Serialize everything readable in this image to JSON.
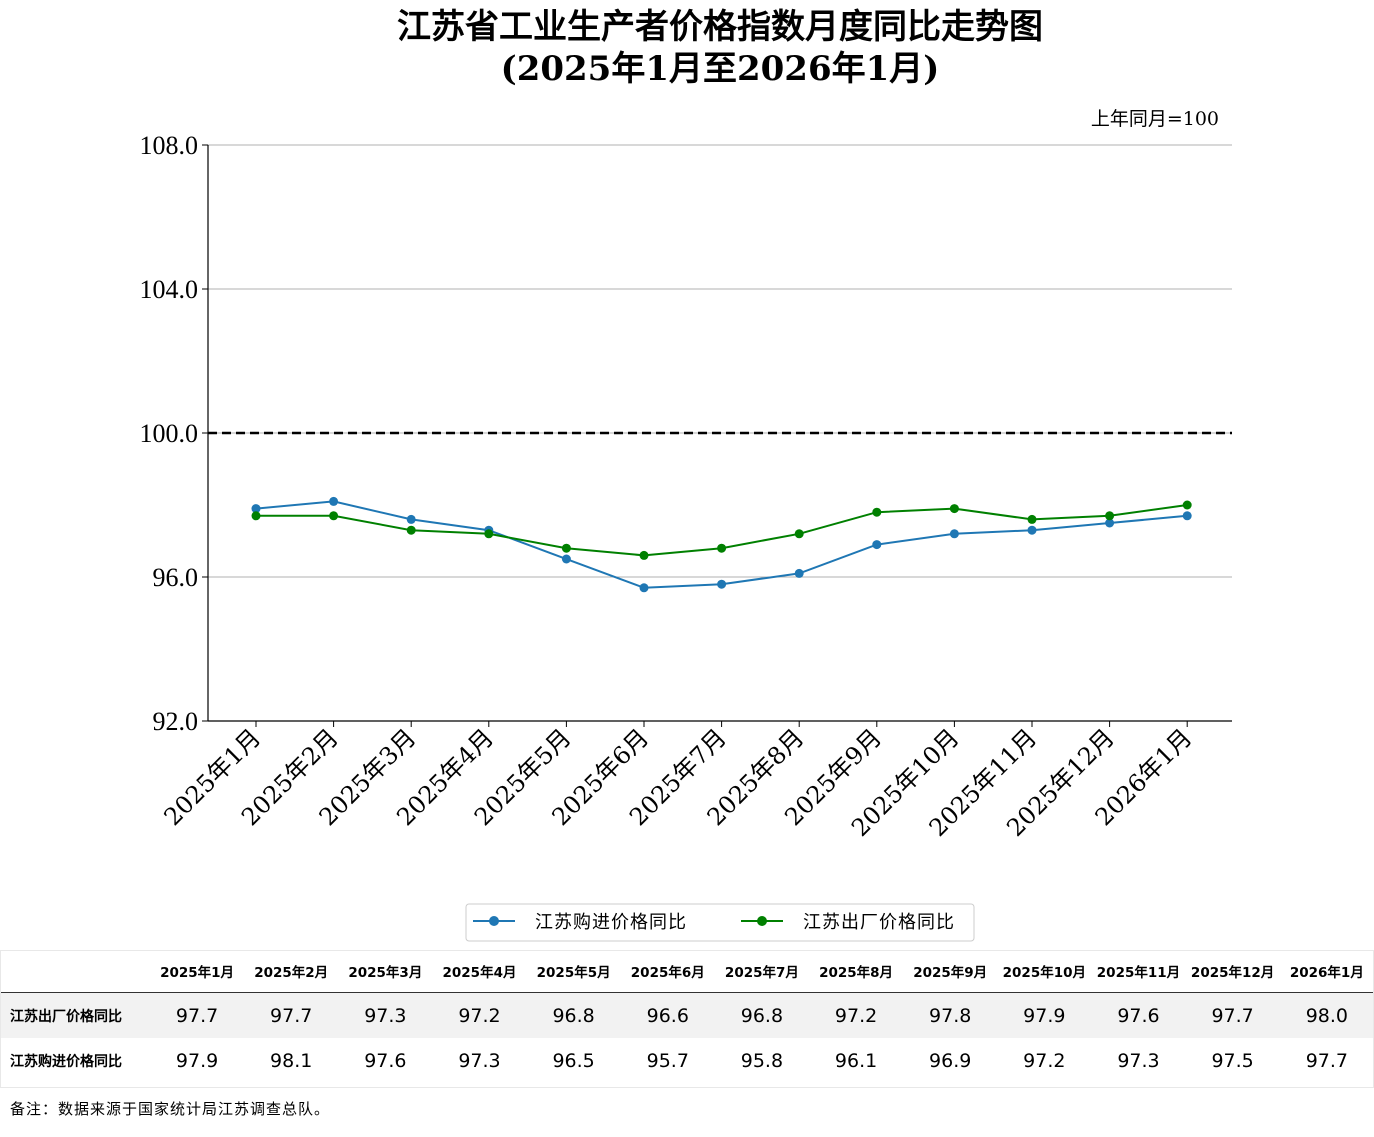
{
  "chart_data": {
    "type": "line",
    "title": "江苏省工业生产者价格指数月度同比走势图",
    "subtitle": "(2025年1月至2026年1月)",
    "unit_note": "上年同月=100",
    "categories": [
      "2025年1月",
      "2025年2月",
      "2025年3月",
      "2025年4月",
      "2025年5月",
      "2025年6月",
      "2025年7月",
      "2025年8月",
      "2025年9月",
      "2025年10月",
      "2025年11月",
      "2025年12月",
      "2026年1月"
    ],
    "ylim": [
      92.0,
      108.0
    ],
    "yticks": [
      "92.0",
      "96.0",
      "100.0",
      "104.0",
      "108.0"
    ],
    "reference_line": 100.0,
    "grid": "horizontal",
    "legend_position": "bottom-center",
    "series": [
      {
        "name": "江苏购进价格同比",
        "color": "#1f77b4",
        "values": [
          97.9,
          98.1,
          97.6,
          97.3,
          96.5,
          95.7,
          95.8,
          96.1,
          96.9,
          97.2,
          97.3,
          97.5,
          97.7
        ]
      },
      {
        "name": "江苏出厂价格同比",
        "color": "#008000",
        "values": [
          97.7,
          97.7,
          97.3,
          97.2,
          96.8,
          96.6,
          96.8,
          97.2,
          97.8,
          97.9,
          97.6,
          97.7,
          98.0
        ]
      }
    ]
  },
  "table": {
    "headers": [
      "2025年1月",
      "2025年2月",
      "2025年3月",
      "2025年4月",
      "2025年5月",
      "2025年6月",
      "2025年7月",
      "2025年8月",
      "2025年9月",
      "2025年10月",
      "2025年11月",
      "2025年12月",
      "2026年1月"
    ],
    "rows": [
      {
        "label": "江苏出厂价格同比",
        "cells": [
          "97.7",
          "97.7",
          "97.3",
          "97.2",
          "96.8",
          "96.6",
          "96.8",
          "97.2",
          "97.8",
          "97.9",
          "97.6",
          "97.7",
          "98.0"
        ]
      },
      {
        "label": "江苏购进价格同比",
        "cells": [
          "97.9",
          "98.1",
          "97.6",
          "97.3",
          "96.5",
          "95.7",
          "95.8",
          "96.1",
          "96.9",
          "97.2",
          "97.3",
          "97.5",
          "97.7"
        ]
      }
    ]
  },
  "footnote": "备注：数据来源于国家统计局江苏调查总队。"
}
